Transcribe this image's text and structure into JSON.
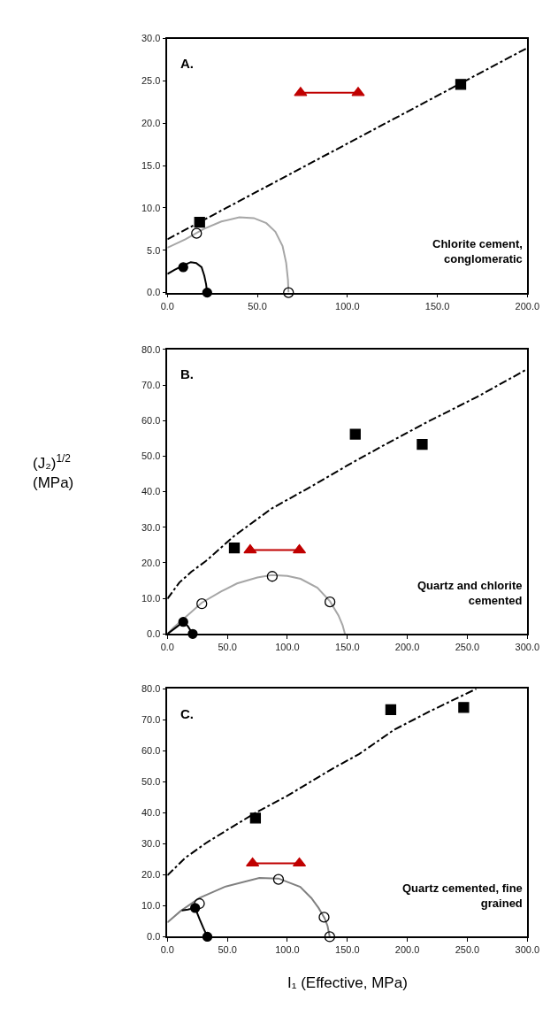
{
  "chart_data": [
    {
      "type": "scatter",
      "xlim": [
        0,
        200
      ],
      "ylim": [
        0,
        30
      ],
      "xticks": [
        {
          "value": 0,
          "label": "0.0"
        },
        {
          "value": 50,
          "label": "50.0"
        },
        {
          "value": 100,
          "label": "100.0"
        },
        {
          "value": 150,
          "label": "150.0"
        },
        {
          "value": 200,
          "label": "200.0"
        }
      ],
      "yticks": [
        {
          "value": 0,
          "label": "0.0"
        },
        {
          "value": 5,
          "label": "5.0"
        },
        {
          "value": 10,
          "label": "10.0"
        },
        {
          "value": 15,
          "label": "15.0"
        },
        {
          "value": 20,
          "label": "20.0"
        },
        {
          "value": 25,
          "label": "25.0"
        },
        {
          "value": 30,
          "label": "30.0"
        }
      ],
      "annotations": [
        "A.",
        "Chlorite cement,\nconglomeratic"
      ],
      "series": [
        {
          "type": "line",
          "color": "#000000",
          "line_style": "dashdot",
          "marker": "none",
          "x": [
            0,
            200
          ],
          "values": [
            6.3,
            28.9
          ]
        },
        {
          "type": "line",
          "color": "#a6a6a6",
          "line_style": "solid",
          "marker": "none",
          "x": [
            0,
            10,
            20,
            30,
            40,
            48,
            55,
            60,
            64,
            66,
            67,
            67.3
          ],
          "values": [
            5.3,
            6.3,
            7.5,
            8.4,
            8.9,
            8.8,
            8.2,
            7.2,
            5.5,
            3.5,
            1.5,
            0
          ]
        },
        {
          "type": "line",
          "color": "#000000",
          "line_style": "solid",
          "marker": "none",
          "x": [
            0,
            4,
            8.8,
            13,
            16,
            19,
            20.5,
            21.5,
            22.1
          ],
          "values": [
            2.2,
            2.7,
            3.2,
            3.6,
            3.5,
            3.0,
            2.0,
            1.0,
            0
          ]
        },
        {
          "color": "#000000",
          "marker": "square",
          "x": [
            17.9,
            163
          ],
          "values": [
            8.3,
            24.6
          ]
        },
        {
          "color": "#000000",
          "marker": "circle-open",
          "x": [
            16.2,
            67.3
          ],
          "values": [
            7.0,
            0
          ]
        },
        {
          "color": "#000000",
          "marker": "circle",
          "x": [
            8.8,
            22.1
          ],
          "values": [
            3.0,
            0
          ]
        },
        {
          "type": "line",
          "color": "#c00000",
          "line_style": "solid",
          "marker": "triangle",
          "x": [
            74,
            106
          ],
          "values": [
            23.6,
            23.6
          ]
        }
      ]
    },
    {
      "type": "scatter",
      "xlim": [
        0,
        300
      ],
      "ylim": [
        0,
        80
      ],
      "xticks": [
        {
          "value": 0,
          "label": "0.0"
        },
        {
          "value": 50,
          "label": "50.0"
        },
        {
          "value": 100,
          "label": "100.0"
        },
        {
          "value": 150,
          "label": "150.0"
        },
        {
          "value": 200,
          "label": "200.0"
        },
        {
          "value": 250,
          "label": "250.0"
        },
        {
          "value": 300,
          "label": "300.0"
        }
      ],
      "yticks": [
        {
          "value": 0,
          "label": "0.0"
        },
        {
          "value": 10,
          "label": "10.0"
        },
        {
          "value": 20,
          "label": "20.0"
        },
        {
          "value": 30,
          "label": "30.0"
        },
        {
          "value": 40,
          "label": "40.0"
        },
        {
          "value": 50,
          "label": "50.0"
        },
        {
          "value": 60,
          "label": "60.0"
        },
        {
          "value": 70,
          "label": "70.0"
        },
        {
          "value": 80,
          "label": "80.0"
        }
      ],
      "ylabel": "(J₂)$^{1/2}$\n(MPa)",
      "annotations": [
        "B.",
        "Quartz and chlorite\ncemented"
      ],
      "series": [
        {
          "type": "line",
          "color": "#000000",
          "line_style": "dashdot",
          "marker": "none",
          "x": [
            0,
            10,
            20,
            32,
            55.8,
            87,
            120,
            150,
            180,
            216,
            260,
            300
          ],
          "values": [
            9.9,
            14.5,
            17.5,
            20.5,
            27.6,
            35.3,
            41.5,
            47.4,
            53,
            59.5,
            67,
            74.5
          ]
        },
        {
          "type": "line",
          "color": "#a6a6a6",
          "line_style": "solid",
          "marker": "none",
          "x": [
            0,
            5,
            13.7,
            28.7,
            45,
            58,
            75,
            87,
            100,
            111,
            125,
            135.5,
            142.6,
            146,
            148
          ],
          "values": [
            0,
            1.8,
            4.3,
            8.8,
            12,
            14.2,
            15.9,
            16.6,
            16.3,
            15.5,
            13,
            9.2,
            5.2,
            2.5,
            0
          ]
        },
        {
          "type": "line",
          "color": "#000000",
          "line_style": "solid",
          "marker": "none",
          "x": [
            0,
            7,
            13.2,
            17,
            21.1
          ],
          "values": [
            0,
            1.8,
            3.4,
            2.2,
            0
          ]
        },
        {
          "color": "#000000",
          "marker": "square",
          "x": [
            55.8,
            156.6,
            212.4
          ],
          "values": [
            24.2,
            56.2,
            53.3
          ]
        },
        {
          "color": "#000000",
          "marker": "circle-open",
          "x": [
            28.7,
            87.4,
            135.5
          ],
          "values": [
            8.5,
            16.2,
            9.0
          ]
        },
        {
          "color": "#000000",
          "marker": "circle",
          "x": [
            13.2,
            21.1
          ],
          "values": [
            3.4,
            0
          ]
        },
        {
          "type": "line",
          "color": "#c00000",
          "line_style": "solid",
          "marker": "triangle",
          "x": [
            69,
            110
          ],
          "values": [
            23.6,
            23.6
          ]
        }
      ]
    },
    {
      "type": "scatter",
      "xlim": [
        0,
        300
      ],
      "ylim": [
        0,
        80
      ],
      "xticks": [
        {
          "value": 0,
          "label": "0.0"
        },
        {
          "value": 50,
          "label": "50.0"
        },
        {
          "value": 100,
          "label": "100.0"
        },
        {
          "value": 150,
          "label": "150.0"
        },
        {
          "value": 200,
          "label": "200.0"
        },
        {
          "value": 250,
          "label": "250.0"
        },
        {
          "value": 300,
          "label": "300.0"
        }
      ],
      "yticks": [
        {
          "value": 0,
          "label": "0.0"
        },
        {
          "value": 10,
          "label": "10.0"
        },
        {
          "value": 20,
          "label": "20.0"
        },
        {
          "value": 30,
          "label": "30.0"
        },
        {
          "value": 40,
          "label": "40.0"
        },
        {
          "value": 50,
          "label": "50.0"
        },
        {
          "value": 60,
          "label": "60.0"
        },
        {
          "value": 70,
          "label": "70.0"
        },
        {
          "value": 80,
          "label": "80.0"
        }
      ],
      "xlabel": "I₁ (Effective, MPa)",
      "annotations": [
        "C.",
        "Quartz cemented, fine\ngrained"
      ],
      "series": [
        {
          "type": "line",
          "color": "#000000",
          "line_style": "dashdot",
          "marker": "none",
          "x": [
            0,
            15,
            32,
            50,
            73.4,
            100,
            137,
            160,
            189,
            220,
            257.5
          ],
          "values": [
            19.8,
            25.5,
            30.2,
            34.5,
            40,
            45.5,
            54.1,
            59,
            66.8,
            73,
            80
          ]
        },
        {
          "type": "line",
          "color": "#808080",
          "line_style": "solid",
          "marker": "none",
          "x": [
            0,
            11,
            26.7,
            47.7,
            76.6,
            92.6,
            110.7,
            120,
            126,
            131,
            133.5,
            135.3
          ],
          "values": [
            4.6,
            8.3,
            12.5,
            16.1,
            19.0,
            18.8,
            16.1,
            12.5,
            9.3,
            6,
            3.5,
            0
          ]
        },
        {
          "type": "line",
          "color": "#000000",
          "line_style": "solid",
          "marker": "none",
          "x": [
            12,
            17,
            23.1,
            27,
            30,
            33.3
          ],
          "values": [
            8.5,
            8.8,
            9.3,
            5.5,
            2.8,
            0
          ]
        },
        {
          "color": "#000000",
          "marker": "square",
          "x": [
            73.4,
            186.2,
            247
          ],
          "values": [
            38.3,
            73.3,
            74.0
          ]
        },
        {
          "color": "#000000",
          "marker": "circle-open",
          "x": [
            26.7,
            92.6,
            130.6,
            135.3
          ],
          "values": [
            10.7,
            18.5,
            6.3,
            0
          ]
        },
        {
          "color": "#000000",
          "marker": "circle",
          "x": [
            23.1,
            33.3
          ],
          "values": [
            9.3,
            0
          ]
        },
        {
          "type": "line",
          "color": "#c00000",
          "line_style": "solid",
          "marker": "triangle",
          "x": [
            71,
            110
          ],
          "values": [
            23.7,
            23.7
          ]
        }
      ]
    }
  ]
}
